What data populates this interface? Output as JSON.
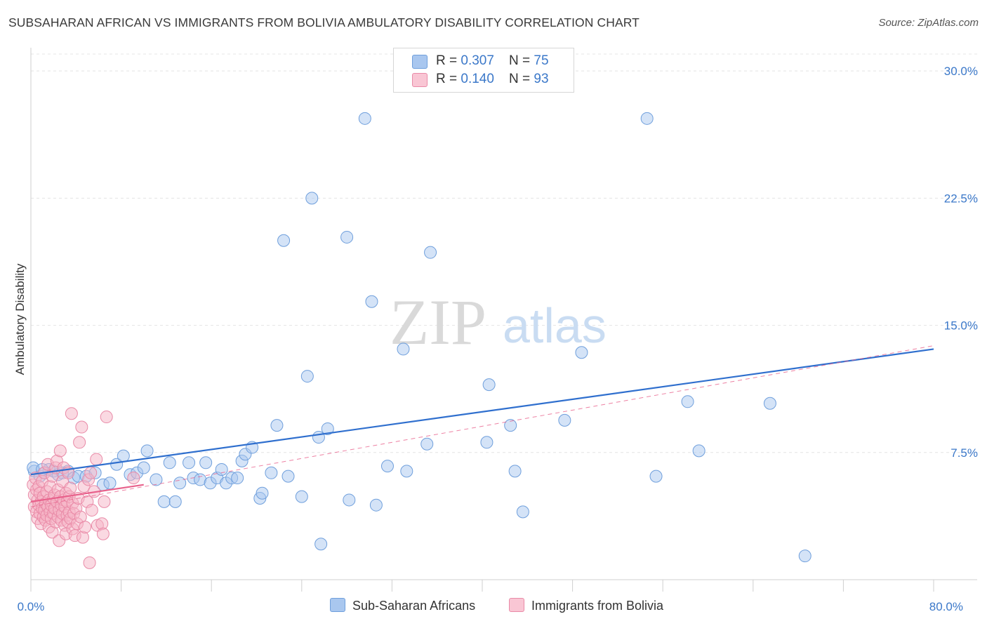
{
  "title": "SUBSAHARAN AFRICAN VS IMMIGRANTS FROM BOLIVIA AMBULATORY DISABILITY CORRELATION CHART",
  "source": "Source: ZipAtlas.com",
  "watermark": {
    "zip": "ZIP",
    "atlas": "atlas"
  },
  "legend": {
    "series1": {
      "r_label": "R = ",
      "r_value": "0.307",
      "n_label": "N = ",
      "n_value": "75"
    },
    "series2": {
      "r_label": "R = ",
      "r_value": "0.140",
      "n_label": "N = ",
      "n_value": "93"
    }
  },
  "colors": {
    "blue_fill": "#a9c7ef",
    "blue_stroke": "#6f9fdc",
    "blue_line": "#2f6fce",
    "pink_fill": "#f5b3c6",
    "pink_stroke": "#e98aa7",
    "pink_line": "#e8628c",
    "axis_text": "#3b78c9",
    "grid": "#e4e4e4"
  },
  "chart_data": {
    "type": "scatter",
    "title": "SUBSAHARAN AFRICAN VS IMMIGRANTS FROM BOLIVIA AMBULATORY DISABILITY CORRELATION CHART",
    "xlabel": "",
    "ylabel": "Ambulatory Disability",
    "xlim": [
      0,
      80
    ],
    "ylim": [
      0,
      31
    ],
    "x_tick_labels": [
      "0.0%",
      "80.0%"
    ],
    "y_ticks": [
      7.5,
      15.0,
      22.5,
      30.0
    ],
    "y_tick_labels": [
      "7.5%",
      "15.0%",
      "22.5%",
      "30.0%"
    ],
    "series": [
      {
        "name": "Sub-Saharan Africans",
        "color": "#6f9fdc",
        "trend": {
          "x": [
            0,
            80
          ],
          "y": [
            6.2,
            13.6
          ]
        },
        "points": [
          [
            0.3,
            6.4
          ],
          [
            0.8,
            6.1
          ],
          [
            1.2,
            6.3
          ],
          [
            1.6,
            6.5
          ],
          [
            2.0,
            6.4
          ],
          [
            2.4,
            6.2
          ],
          [
            2.8,
            6.3
          ],
          [
            3.3,
            6.4
          ],
          [
            3.8,
            6.0
          ],
          [
            4.2,
            6.1
          ],
          [
            4.9,
            6.1
          ],
          [
            5.7,
            6.3
          ],
          [
            6.4,
            5.6
          ],
          [
            7.0,
            5.7
          ],
          [
            7.6,
            6.8
          ],
          [
            8.2,
            7.3
          ],
          [
            8.8,
            6.2
          ],
          [
            9.4,
            6.3
          ],
          [
            10.0,
            6.6
          ],
          [
            10.3,
            7.6
          ],
          [
            11.1,
            5.9
          ],
          [
            11.8,
            4.6
          ],
          [
            12.3,
            6.9
          ],
          [
            12.8,
            4.6
          ],
          [
            13.2,
            5.7
          ],
          [
            14.0,
            6.9
          ],
          [
            14.4,
            6.0
          ],
          [
            15.0,
            5.9
          ],
          [
            15.5,
            6.9
          ],
          [
            15.9,
            5.7
          ],
          [
            16.5,
            6.0
          ],
          [
            16.9,
            6.5
          ],
          [
            17.3,
            5.7
          ],
          [
            17.8,
            6.0
          ],
          [
            18.3,
            6.0
          ],
          [
            18.7,
            7.0
          ],
          [
            19.0,
            7.4
          ],
          [
            19.6,
            7.8
          ],
          [
            20.3,
            4.8
          ],
          [
            20.5,
            5.1
          ],
          [
            21.3,
            6.3
          ],
          [
            21.8,
            9.1
          ],
          [
            22.4,
            20.0
          ],
          [
            22.8,
            6.1
          ],
          [
            24.0,
            4.9
          ],
          [
            24.5,
            12.0
          ],
          [
            24.9,
            22.5
          ],
          [
            25.5,
            8.4
          ],
          [
            25.7,
            2.1
          ],
          [
            26.3,
            8.9
          ],
          [
            28.0,
            20.2
          ],
          [
            28.2,
            4.7
          ],
          [
            29.6,
            27.2
          ],
          [
            30.2,
            16.4
          ],
          [
            30.6,
            4.4
          ],
          [
            31.6,
            6.7
          ],
          [
            33.0,
            13.6
          ],
          [
            33.3,
            6.4
          ],
          [
            35.1,
            8.0
          ],
          [
            35.4,
            19.3
          ],
          [
            40.4,
            8.1
          ],
          [
            40.6,
            11.5
          ],
          [
            42.5,
            9.1
          ],
          [
            42.9,
            6.4
          ],
          [
            43.6,
            4.0
          ],
          [
            47.3,
            9.4
          ],
          [
            48.8,
            13.4
          ],
          [
            54.6,
            27.2
          ],
          [
            55.4,
            6.1
          ],
          [
            58.2,
            10.5
          ],
          [
            59.2,
            7.6
          ],
          [
            65.5,
            10.4
          ],
          [
            68.6,
            1.4
          ],
          [
            0.2,
            6.6
          ],
          [
            1.0,
            6.5
          ]
        ]
      },
      {
        "name": "Immigrants from Bolivia",
        "color": "#e98aa7",
        "trend": {
          "x": [
            0,
            10
          ],
          "y": [
            4.6,
            5.6
          ]
        },
        "dashed_trend": {
          "x": [
            0,
            80
          ],
          "y": [
            4.3,
            13.8
          ]
        },
        "points": [
          [
            0.2,
            5.6
          ],
          [
            0.3,
            5.0
          ],
          [
            0.3,
            4.3
          ],
          [
            0.4,
            6.0
          ],
          [
            0.5,
            5.3
          ],
          [
            0.5,
            4.0
          ],
          [
            0.6,
            4.7
          ],
          [
            0.6,
            3.6
          ],
          [
            0.7,
            5.5
          ],
          [
            0.7,
            4.4
          ],
          [
            0.8,
            3.9
          ],
          [
            0.8,
            5.1
          ],
          [
            0.9,
            4.6
          ],
          [
            0.9,
            3.3
          ],
          [
            1.0,
            4.2
          ],
          [
            1.0,
            5.8
          ],
          [
            1.1,
            3.7
          ],
          [
            1.1,
            4.9
          ],
          [
            1.2,
            4.1
          ],
          [
            1.2,
            6.3
          ],
          [
            1.3,
            3.5
          ],
          [
            1.3,
            4.5
          ],
          [
            1.4,
            5.2
          ],
          [
            1.4,
            3.8
          ],
          [
            1.5,
            4.3
          ],
          [
            1.5,
            6.8
          ],
          [
            1.6,
            3.1
          ],
          [
            1.6,
            4.7
          ],
          [
            1.7,
            4.0
          ],
          [
            1.7,
            5.5
          ],
          [
            1.8,
            3.6
          ],
          [
            1.8,
            4.4
          ],
          [
            1.9,
            6.1
          ],
          [
            1.9,
            2.8
          ],
          [
            2.0,
            4.8
          ],
          [
            2.0,
            3.9
          ],
          [
            2.1,
            5.0
          ],
          [
            2.1,
            4.2
          ],
          [
            2.2,
            3.4
          ],
          [
            2.2,
            6.6
          ],
          [
            2.3,
            4.6
          ],
          [
            2.3,
            7.0
          ],
          [
            2.4,
            3.7
          ],
          [
            2.4,
            5.3
          ],
          [
            2.5,
            4.1
          ],
          [
            2.5,
            2.3
          ],
          [
            2.6,
            4.9
          ],
          [
            2.6,
            7.6
          ],
          [
            2.7,
            3.5
          ],
          [
            2.7,
            4.4
          ],
          [
            2.8,
            5.8
          ],
          [
            2.8,
            3.9
          ],
          [
            2.9,
            4.7
          ],
          [
            2.9,
            6.6
          ],
          [
            3.0,
            3.2
          ],
          [
            3.0,
            4.3
          ],
          [
            3.1,
            5.1
          ],
          [
            3.1,
            2.7
          ],
          [
            3.2,
            3.8
          ],
          [
            3.2,
            4.6
          ],
          [
            3.3,
            6.3
          ],
          [
            3.3,
            3.4
          ],
          [
            3.4,
            4.9
          ],
          [
            3.4,
            4.0
          ],
          [
            3.5,
            3.6
          ],
          [
            3.5,
            5.4
          ],
          [
            3.6,
            9.8
          ],
          [
            3.7,
            4.5
          ],
          [
            3.7,
            3.0
          ],
          [
            3.8,
            3.9
          ],
          [
            3.9,
            2.6
          ],
          [
            4.0,
            4.2
          ],
          [
            4.1,
            3.3
          ],
          [
            4.2,
            4.8
          ],
          [
            4.3,
            8.1
          ],
          [
            4.4,
            3.7
          ],
          [
            4.5,
            9.0
          ],
          [
            4.6,
            2.5
          ],
          [
            4.7,
            5.5
          ],
          [
            4.8,
            3.1
          ],
          [
            5.0,
            4.6
          ],
          [
            5.1,
            5.9
          ],
          [
            5.2,
            1.0
          ],
          [
            5.3,
            6.3
          ],
          [
            5.4,
            4.1
          ],
          [
            5.6,
            5.2
          ],
          [
            5.8,
            7.1
          ],
          [
            5.9,
            3.2
          ],
          [
            6.3,
            3.3
          ],
          [
            6.4,
            2.7
          ],
          [
            6.5,
            4.6
          ],
          [
            6.7,
            9.6
          ],
          [
            9.1,
            6.0
          ]
        ]
      }
    ]
  }
}
